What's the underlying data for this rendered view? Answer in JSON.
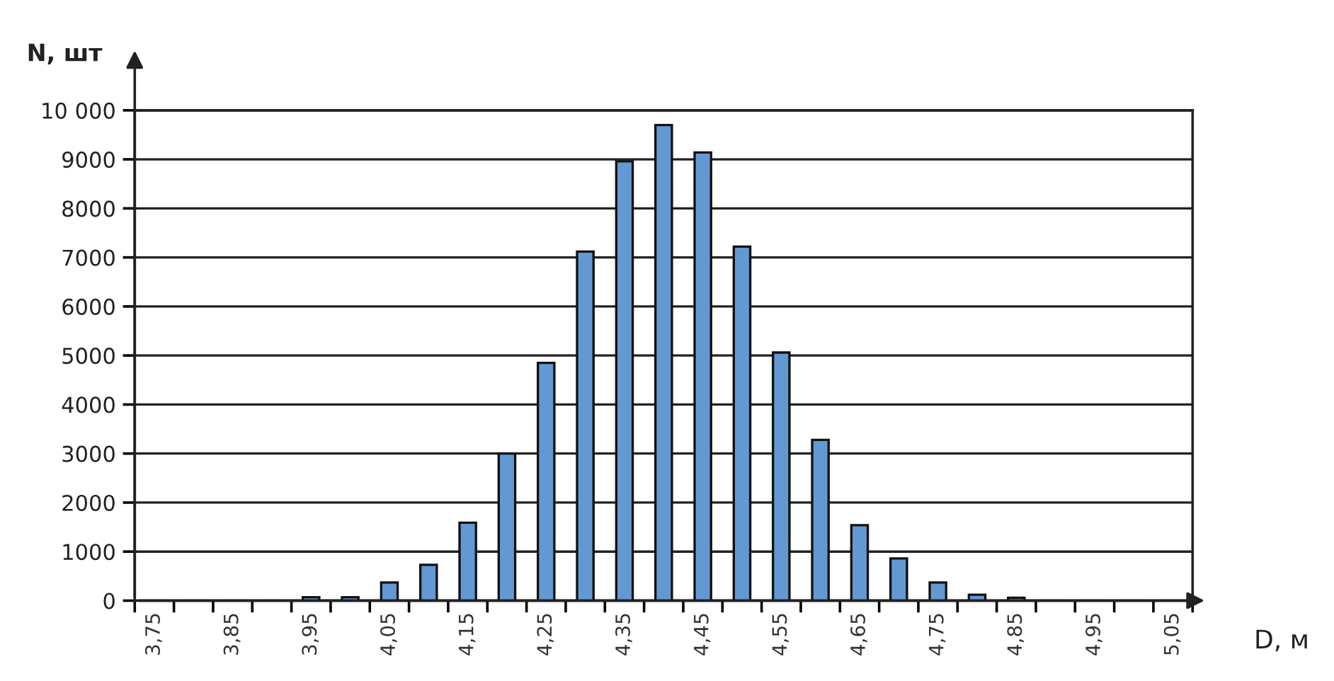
{
  "chart_data": {
    "type": "bar",
    "xlabel": "D, м",
    "ylabel": "N, шт",
    "categories": [
      "3,75",
      null,
      "3,85",
      null,
      "3,95",
      null,
      "4,05",
      null,
      "4,15",
      null,
      "4,25",
      null,
      "4,35",
      null,
      "4,45",
      null,
      "4,55",
      null,
      "4,65",
      null,
      "4,75",
      null,
      "4,85",
      null,
      "4,95",
      null,
      "5,05"
    ],
    "values": [
      0,
      0,
      0,
      0,
      70,
      70,
      370,
      730,
      1590,
      3000,
      4850,
      7120,
      8960,
      9700,
      9140,
      7220,
      5060,
      3280,
      1540,
      860,
      370,
      120,
      60,
      0,
      0,
      0,
      0
    ],
    "color": "#6399d3",
    "ylim": [
      0,
      10000
    ],
    "yticks": [
      0,
      1000,
      2000,
      3000,
      4000,
      5000,
      6000,
      7000,
      8000,
      9000,
      {
        "value": 10000,
        "label": "10 000"
      }
    ],
    "grid": "y",
    "legend": false
  }
}
